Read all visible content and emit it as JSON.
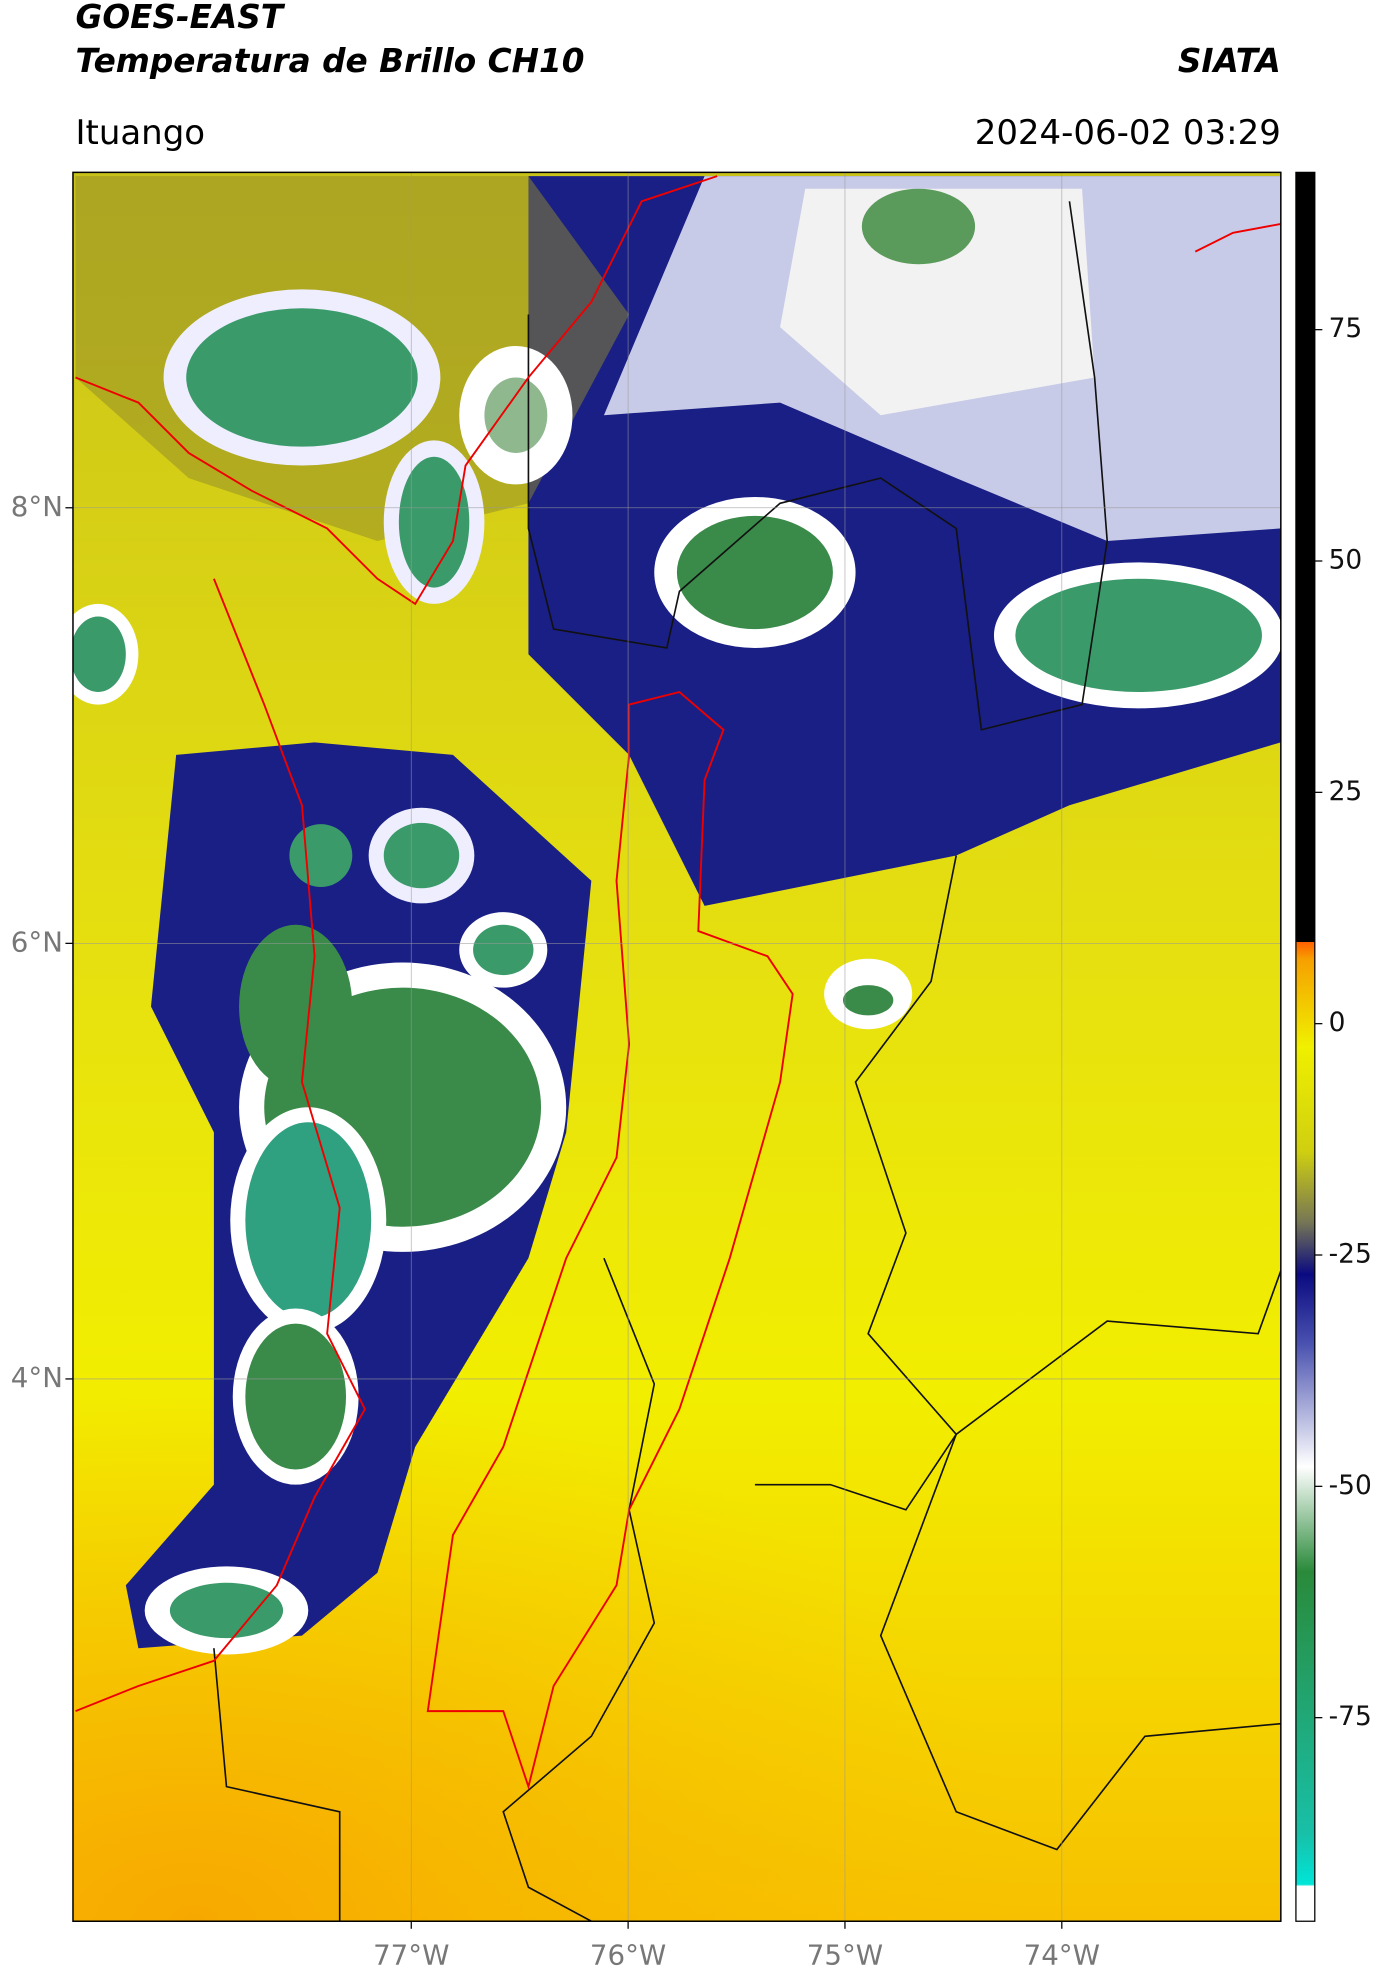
{
  "header": {
    "title": "GOES-EAST",
    "subtitle": "Temperatura de Brillo CH10",
    "source": "SIATA",
    "location": "Ituango",
    "datetime": "2024-06-02 03:29"
  },
  "map": {
    "xlim": [
      -78.56,
      -72.99
    ],
    "ylim": [
      1.51,
      9.54
    ],
    "xticks": [
      {
        "value": -77,
        "label": "77°W"
      },
      {
        "value": -76,
        "label": "76°W"
      },
      {
        "value": -75,
        "label": "75°W"
      },
      {
        "value": -74,
        "label": "74°W"
      }
    ],
    "yticks": [
      {
        "value": 4,
        "label": "4°N"
      },
      {
        "value": 6,
        "label": "6°N"
      },
      {
        "value": 8,
        "label": "8°N"
      }
    ]
  },
  "colorbar": {
    "lim": [
      -97,
      92
    ],
    "ticks": [
      -75,
      -50,
      -25,
      0,
      25,
      50,
      75
    ]
  }
}
